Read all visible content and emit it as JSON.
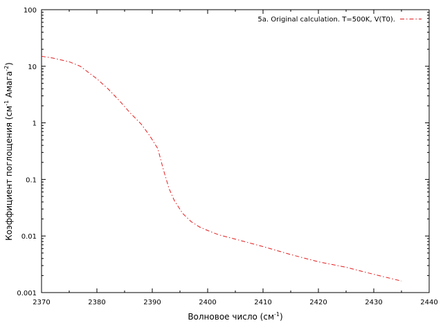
{
  "chart_data": {
    "type": "line",
    "title": "",
    "xlabel": "Волновое число (см",
    "xlabel_sup": "-1",
    "xlabel_end": ")",
    "ylabel": "Коэффициент поглощения (см",
    "ylabel_sup1": "-1",
    "ylabel_mid": " Амага",
    "ylabel_sup2": "-2",
    "ylabel_end": ")",
    "xlim": [
      2370,
      2440
    ],
    "ylim": [
      0.001,
      100
    ],
    "yscale": "log",
    "xticks": [
      2370,
      2380,
      2390,
      2400,
      2410,
      2420,
      2430,
      2440
    ],
    "xtick_labels": [
      "2370",
      "2380",
      "2390",
      "2400",
      "2410",
      "2420",
      "2430",
      "2440"
    ],
    "yticks": [
      0.001,
      0.01,
      0.1,
      1,
      10,
      100
    ],
    "ytick_labels": [
      "0.001",
      "0.01",
      "0.1",
      "1",
      "10",
      "100"
    ],
    "grid": false,
    "legend_position": "top-right",
    "series": [
      {
        "name": "5a. Original calculation. T=500K, V(T0).",
        "color": "#e41a1c",
        "style": "dash-dot",
        "x": [
          2370,
          2372,
          2375,
          2377,
          2380,
          2382,
          2384,
          2386,
          2388,
          2389.5,
          2391,
          2392,
          2393,
          2394,
          2395.5,
          2397,
          2398.5,
          2400,
          2402,
          2405,
          2410,
          2415,
          2420,
          2425,
          2430,
          2435
        ],
        "y": [
          15,
          14,
          12,
          10,
          6,
          4,
          2.5,
          1.5,
          0.95,
          0.6,
          0.35,
          0.15,
          0.07,
          0.042,
          0.025,
          0.018,
          0.0145,
          0.0125,
          0.0105,
          0.0088,
          0.0065,
          0.0047,
          0.0035,
          0.0028,
          0.0021,
          0.0016
        ]
      }
    ]
  }
}
